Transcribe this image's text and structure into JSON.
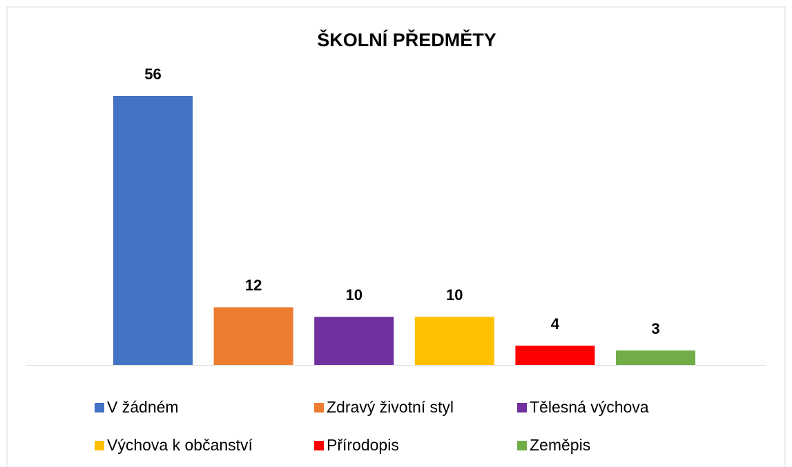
{
  "chart_data": {
    "type": "bar",
    "title": "ŠKOLNÍ PŘEDMĚTY",
    "categories": [
      "V žádném",
      "Zdravý životní styl",
      "Tělesná výchova",
      "Výchova k občanství",
      "Přírodopis",
      "Zeměpis"
    ],
    "values": [
      56,
      12,
      10,
      10,
      4,
      3
    ],
    "colors": [
      "#4472c4",
      "#ed7d31",
      "#7030a0",
      "#ffc000",
      "#ff0000",
      "#70ad47"
    ]
  }
}
